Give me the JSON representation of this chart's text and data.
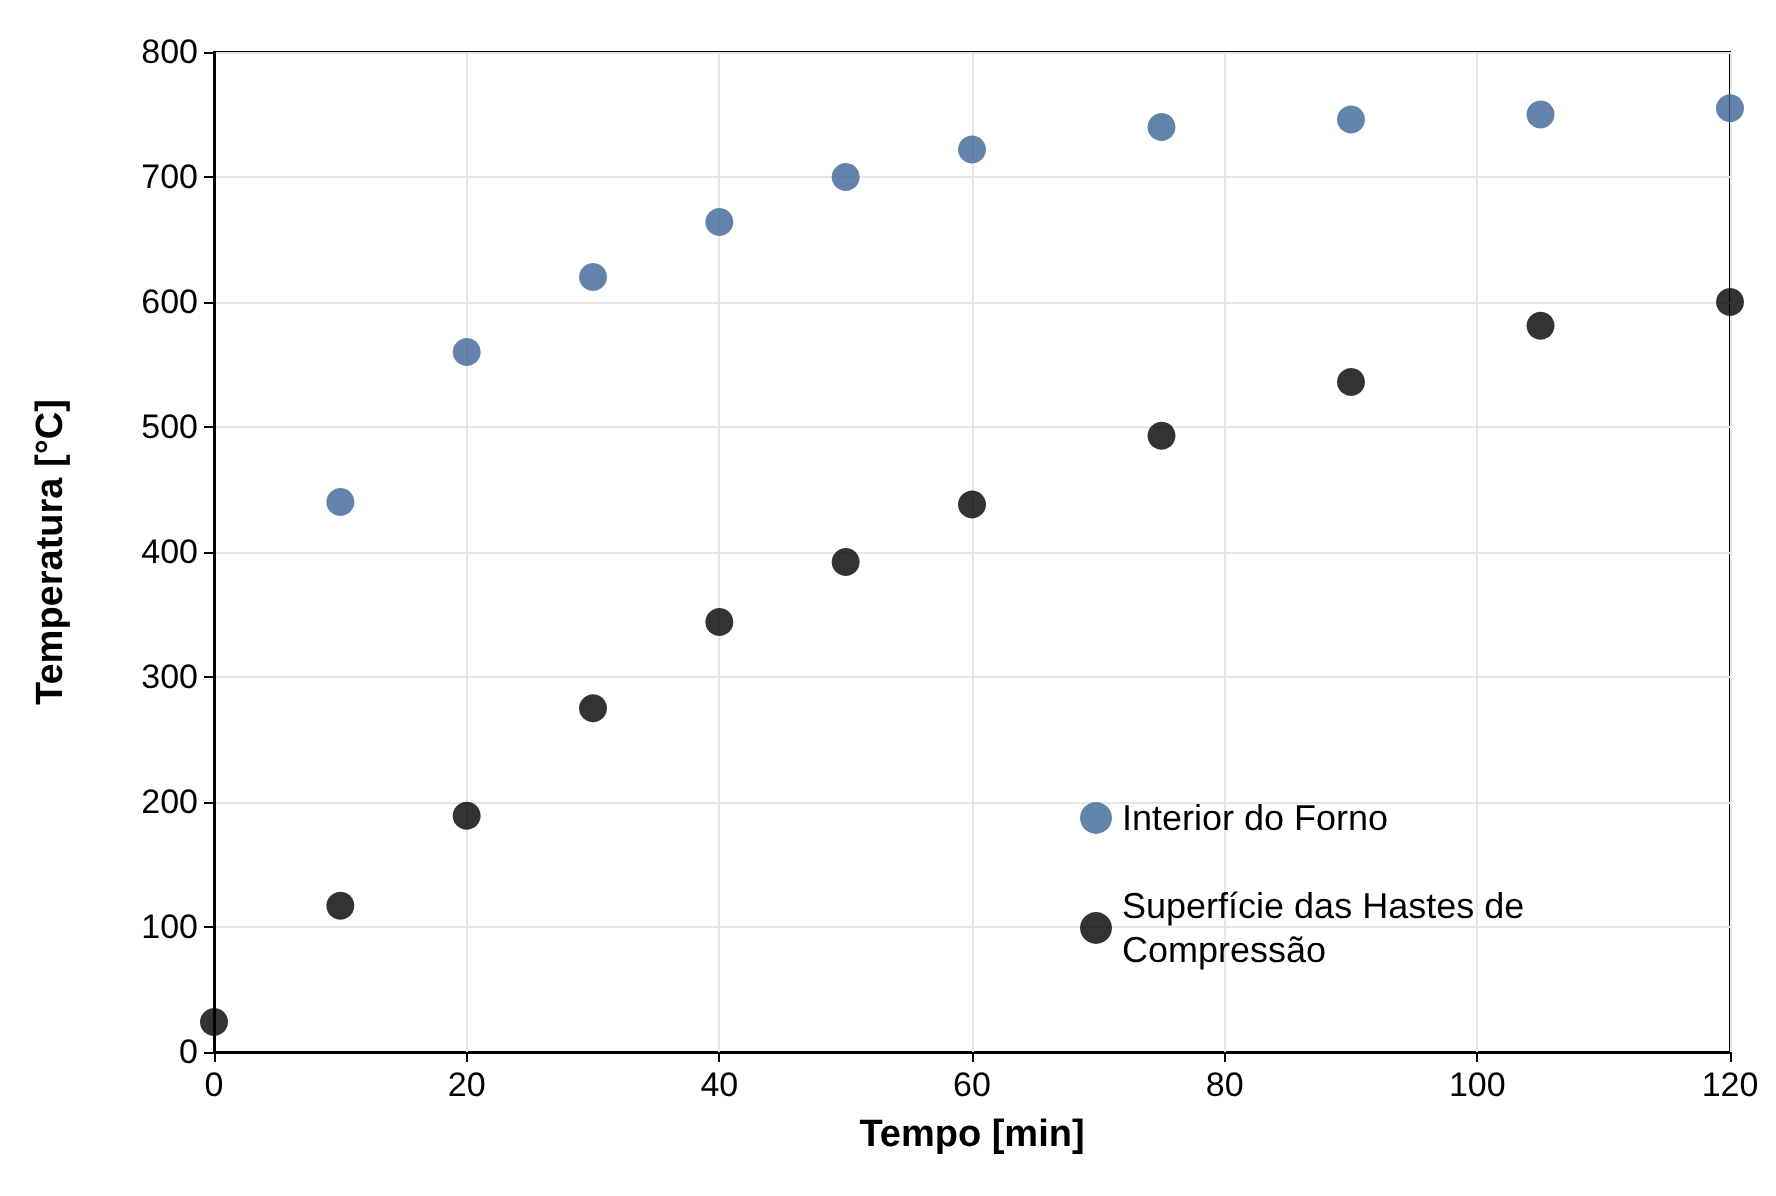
{
  "chart_data": {
    "type": "scatter",
    "xlabel": "Tempo [min]",
    "ylabel": "Temperatura [°C]",
    "xlim": [
      0,
      120
    ],
    "xticks": [
      0,
      20,
      40,
      60,
      80,
      100,
      120
    ],
    "ylim": [
      0,
      800
    ],
    "yticks": [
      0,
      100,
      200,
      300,
      400,
      500,
      600,
      700,
      800
    ],
    "grid": true,
    "legend": "bottom right",
    "marker": "circle",
    "series": [
      {
        "name": "Interior do Forno",
        "color": "#3b6496",
        "x": [
          10,
          20,
          30,
          40,
          50,
          60,
          75,
          90,
          105,
          120
        ],
        "values": [
          440,
          560,
          620,
          664,
          700,
          722,
          740,
          746,
          750,
          755
        ]
      },
      {
        "name": "Superfície das Hastes de Compressão",
        "color": "#000000",
        "x": [
          0,
          10,
          20,
          30,
          40,
          50,
          60,
          75,
          90,
          105,
          120
        ],
        "values": [
          24,
          117,
          189,
          275,
          344,
          392,
          438,
          493,
          536,
          581,
          600
        ]
      }
    ]
  }
}
